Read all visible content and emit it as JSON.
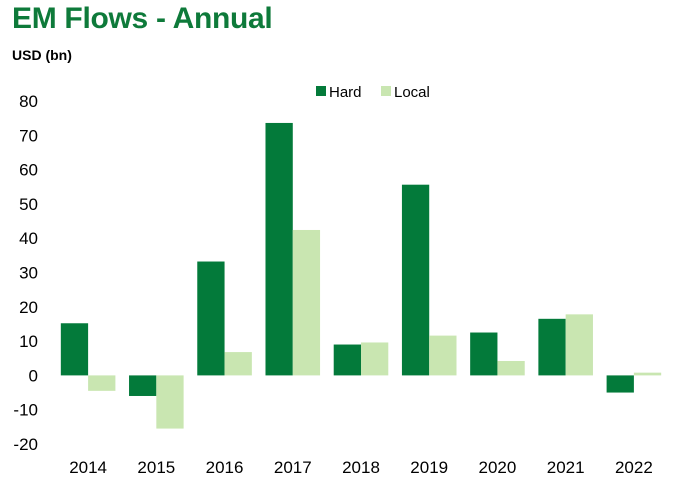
{
  "chart_data": {
    "type": "bar",
    "title": "EM Flows - Annual",
    "ylabel": "USD (bn)",
    "xlabel": "",
    "categories": [
      "2014",
      "2015",
      "2016",
      "2017",
      "2018",
      "2019",
      "2020",
      "2021",
      "2022"
    ],
    "series": [
      {
        "name": "Hard",
        "color": "#037a3a",
        "values": [
          15.2,
          -6,
          33.2,
          73.6,
          9,
          55.6,
          12.5,
          16.5,
          -5
        ]
      },
      {
        "name": "Local",
        "color": "#c9e6b1",
        "values": [
          -4.5,
          -15.5,
          6.8,
          42.4,
          9.6,
          11.6,
          4.2,
          17.8,
          0.8
        ]
      }
    ],
    "ylim": [
      -20,
      80
    ],
    "yticks": [
      80,
      70,
      60,
      50,
      40,
      30,
      20,
      10,
      0,
      -10,
      -20
    ],
    "legend_position": "top-center",
    "grid": false
  }
}
